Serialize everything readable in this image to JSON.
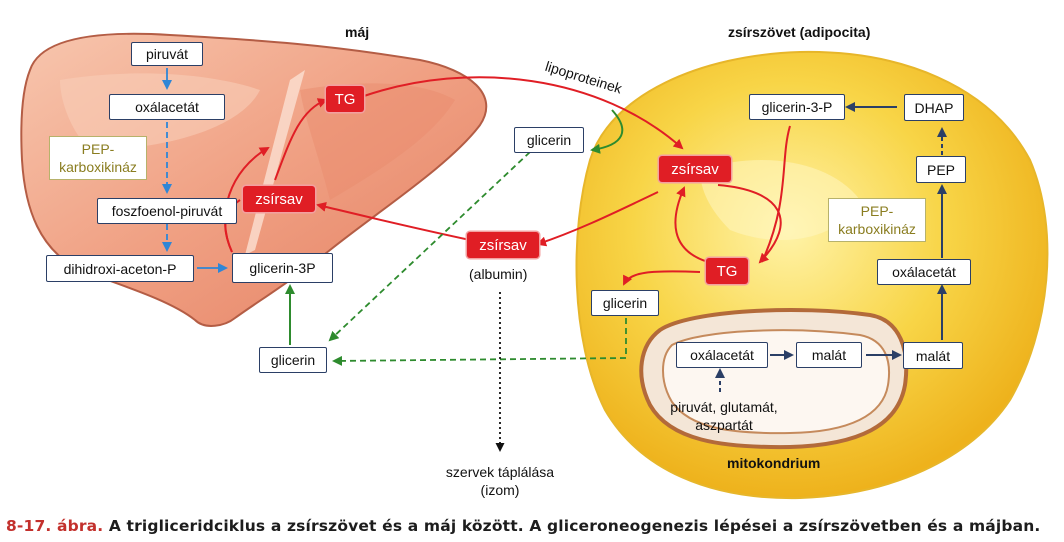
{
  "titles": {
    "liver": "máj",
    "adipose": "zsírszövet (adipocita)",
    "mitochondrion": "mitokondrium"
  },
  "liver": {
    "piruvat": "piruvát",
    "oxalacetat": "oxálacetát",
    "enzyme_line1": "PEP-",
    "enzyme_line2": "karboxikináz",
    "foszfoenol": "foszfoenol-piruvát",
    "dhap": "dihidroxi-aceton-P",
    "glicerin3p": "glicerin-3P",
    "tg": "TG",
    "zsirsav": "zsírsav",
    "glicerin": "glicerin"
  },
  "middle": {
    "lipoproteinek": "lipoproteinek",
    "glicerin": "glicerin",
    "zsirsav": "zsírsav",
    "albumin": "(albumin)",
    "szervek_line1": "szervek táplálása",
    "szervek_line2": "(izom)"
  },
  "adipose": {
    "glicerin3p": "glicerin-3-P",
    "dhap": "DHAP",
    "pep": "PEP",
    "enzyme_line1": "PEP-",
    "enzyme_line2": "karboxikináz",
    "oxalacetat": "oxálacetát",
    "zsirsav": "zsírsav",
    "tg": "TG",
    "glicerin": "glicerin",
    "malat_out": "malát"
  },
  "mito": {
    "oxalacetat": "oxálacetát",
    "malat": "malát",
    "precursors_line1": "piruvát, glutamát,",
    "precursors_line2": "aszpartát"
  },
  "caption": {
    "number": "8-17. ábra.",
    "text": " A trigliceridciklus a zsírszövet és a máj között. A gliceroneogenezis lépései a zsírszövetben és a májban."
  },
  "colors": {
    "red": "#e01e25",
    "blue": "#2f86d6",
    "green": "#2e8b2e",
    "navy": "#2b3f66",
    "liver": "#f0a083",
    "fat": "#f6cf3a"
  }
}
